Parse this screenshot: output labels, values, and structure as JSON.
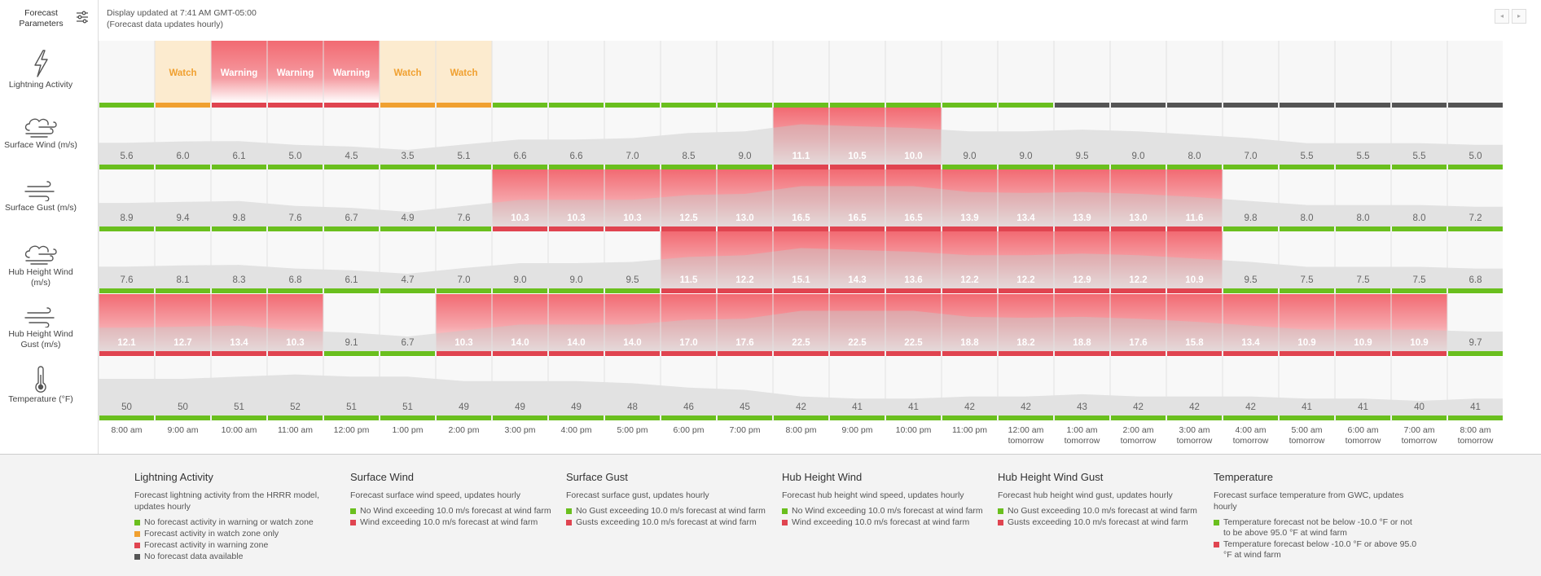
{
  "sidebar": {
    "params_label": "Forecast Parameters",
    "rows": [
      {
        "label": "Lightning Activity",
        "icon": "lightning-icon"
      },
      {
        "label": "Surface Wind (m/s)",
        "icon": "wind-icon"
      },
      {
        "label": "Surface Gust (m/s)",
        "icon": "gust-icon"
      },
      {
        "label": "Hub Height Wind (m/s)",
        "icon": "wind-icon"
      },
      {
        "label": "Hub Height Wind Gust (m/s)",
        "icon": "gust-icon"
      },
      {
        "label": "Temperature (°F)",
        "icon": "thermometer-icon"
      }
    ]
  },
  "header": {
    "updated": "Display updated at 7:41 AM GMT-05:00",
    "note": "(Forecast data updates hourly)",
    "prev_icon": "◂",
    "next_icon": "▸"
  },
  "colors": {
    "green": "#6abf1e",
    "orange": "#f0a030",
    "red": "#e04450",
    "gray": "#555555",
    "watch_bg": "#fcebcf",
    "watch_text": "#f0a030",
    "warning_bg": "#f26a72"
  },
  "lightning": {
    "cells": [
      "",
      "Watch",
      "Warning",
      "Warning",
      "Warning",
      "Watch",
      "Watch",
      "",
      "",
      "",
      "",
      "",
      "",
      "",
      "",
      "",
      "",
      "",
      "",
      "",
      "",
      "",
      "",
      "",
      ""
    ],
    "status": [
      "g",
      "o",
      "r",
      "r",
      "r",
      "o",
      "o",
      "g",
      "g",
      "g",
      "g",
      "g",
      "g",
      "g",
      "g",
      "g",
      "g",
      "x",
      "x",
      "x",
      "x",
      "x",
      "x",
      "x",
      "x"
    ]
  },
  "metrics": [
    {
      "name": "surface-wind",
      "values": [
        "5.6",
        "6.0",
        "6.1",
        "5.0",
        "4.5",
        "3.5",
        "5.1",
        "6.6",
        "6.6",
        "7.0",
        "8.5",
        "9.0",
        "11.1",
        "10.5",
        "10.0",
        "9.0",
        "9.0",
        "9.5",
        "9.0",
        "8.0",
        "7.0",
        "5.5",
        "5.5",
        "5.5",
        "5.0"
      ],
      "exceed": [
        0,
        0,
        0,
        0,
        0,
        0,
        0,
        0,
        0,
        0,
        0,
        0,
        1,
        1,
        1,
        0,
        0,
        0,
        0,
        0,
        0,
        0,
        0,
        0,
        0
      ]
    },
    {
      "name": "surface-gust",
      "values": [
        "8.9",
        "9.4",
        "9.8",
        "7.6",
        "6.7",
        "4.9",
        "7.6",
        "10.3",
        "10.3",
        "10.3",
        "12.5",
        "13.0",
        "16.5",
        "16.5",
        "16.5",
        "13.9",
        "13.4",
        "13.9",
        "13.0",
        "11.6",
        "9.8",
        "8.0",
        "8.0",
        "8.0",
        "7.2"
      ],
      "exceed": [
        0,
        0,
        0,
        0,
        0,
        0,
        0,
        1,
        1,
        1,
        1,
        1,
        1,
        1,
        1,
        1,
        1,
        1,
        1,
        1,
        0,
        0,
        0,
        0,
        0
      ]
    },
    {
      "name": "hub-height-wind",
      "values": [
        "7.6",
        "8.1",
        "8.3",
        "6.8",
        "6.1",
        "4.7",
        "7.0",
        "9.0",
        "9.0",
        "9.5",
        "11.5",
        "12.2",
        "15.1",
        "14.3",
        "13.6",
        "12.2",
        "12.2",
        "12.9",
        "12.2",
        "10.9",
        "9.5",
        "7.5",
        "7.5",
        "7.5",
        "6.8"
      ],
      "exceed": [
        0,
        0,
        0,
        0,
        0,
        0,
        0,
        0,
        0,
        0,
        1,
        1,
        1,
        1,
        1,
        1,
        1,
        1,
        1,
        1,
        0,
        0,
        0,
        0,
        0
      ]
    },
    {
      "name": "hub-height-wind-gust",
      "values": [
        "12.1",
        "12.7",
        "13.4",
        "10.3",
        "9.1",
        "6.7",
        "10.3",
        "14.0",
        "14.0",
        "14.0",
        "17.0",
        "17.6",
        "22.5",
        "22.5",
        "22.5",
        "18.8",
        "18.2",
        "18.8",
        "17.6",
        "15.8",
        "13.4",
        "10.9",
        "10.9",
        "10.9",
        "9.7"
      ],
      "exceed": [
        1,
        1,
        1,
        1,
        0,
        0,
        1,
        1,
        1,
        1,
        1,
        1,
        1,
        1,
        1,
        1,
        1,
        1,
        1,
        1,
        1,
        1,
        1,
        1,
        0
      ]
    },
    {
      "name": "temperature",
      "values": [
        "50",
        "50",
        "51",
        "52",
        "51",
        "51",
        "49",
        "49",
        "49",
        "48",
        "46",
        "45",
        "42",
        "41",
        "41",
        "42",
        "42",
        "43",
        "42",
        "42",
        "42",
        "41",
        "41",
        "40",
        "41"
      ],
      "exceed": [
        0,
        0,
        0,
        0,
        0,
        0,
        0,
        0,
        0,
        0,
        0,
        0,
        0,
        0,
        0,
        0,
        0,
        0,
        0,
        0,
        0,
        0,
        0,
        0,
        0
      ]
    }
  ],
  "times": [
    [
      "8:00 am",
      ""
    ],
    [
      "9:00 am",
      ""
    ],
    [
      "10:00 am",
      ""
    ],
    [
      "11:00 am",
      ""
    ],
    [
      "12:00 pm",
      ""
    ],
    [
      "1:00 pm",
      ""
    ],
    [
      "2:00 pm",
      ""
    ],
    [
      "3:00 pm",
      ""
    ],
    [
      "4:00 pm",
      ""
    ],
    [
      "5:00 pm",
      ""
    ],
    [
      "6:00 pm",
      ""
    ],
    [
      "7:00 pm",
      ""
    ],
    [
      "8:00 pm",
      ""
    ],
    [
      "9:00 pm",
      ""
    ],
    [
      "10:00 pm",
      ""
    ],
    [
      "11:00 pm",
      ""
    ],
    [
      "12:00 am",
      "tomorrow"
    ],
    [
      "1:00 am",
      "tomorrow"
    ],
    [
      "2:00 am",
      "tomorrow"
    ],
    [
      "3:00 am",
      "tomorrow"
    ],
    [
      "4:00 am",
      "tomorrow"
    ],
    [
      "5:00 am",
      "tomorrow"
    ],
    [
      "6:00 am",
      "tomorrow"
    ],
    [
      "7:00 am",
      "tomorrow"
    ],
    [
      "8:00 am",
      "tomorrow"
    ]
  ],
  "legend": [
    {
      "title": "Lightning Activity",
      "desc": "Forecast lightning activity from the HRRR model, updates hourly",
      "items": [
        {
          "color": "#6abf1e",
          "text": "No forecast activity in warning or watch zone"
        },
        {
          "color": "#f0a030",
          "text": "Forecast activity in watch zone only"
        },
        {
          "color": "#e04450",
          "text": "Forecast activity in warning zone"
        },
        {
          "color": "#555555",
          "text": "No forecast data available"
        }
      ]
    },
    {
      "title": "Surface Wind",
      "desc": "Forecast surface wind speed, updates hourly",
      "items": [
        {
          "color": "#6abf1e",
          "text": "No Wind exceeding 10.0 m/s forecast at wind farm"
        },
        {
          "color": "#e04450",
          "text": "Wind exceeding 10.0 m/s forecast at wind farm"
        }
      ]
    },
    {
      "title": "Surface Gust",
      "desc": "Forecast surface gust, updates hourly",
      "items": [
        {
          "color": "#6abf1e",
          "text": "No Gust exceeding 10.0 m/s forecast at wind farm"
        },
        {
          "color": "#e04450",
          "text": "Gusts exceeding 10.0 m/s forecast at wind farm"
        }
      ]
    },
    {
      "title": "Hub Height Wind",
      "desc": "Forecast hub height wind speed, updates hourly",
      "items": [
        {
          "color": "#6abf1e",
          "text": "No Wind exceeding 10.0 m/s forecast at wind farm"
        },
        {
          "color": "#e04450",
          "text": "Wind exceeding 10.0 m/s forecast at wind farm"
        }
      ]
    },
    {
      "title": "Hub Height Wind Gust",
      "desc": "Forecast hub height wind gust, updates hourly",
      "items": [
        {
          "color": "#6abf1e",
          "text": "No Gust exceeding 10.0 m/s forecast at wind farm"
        },
        {
          "color": "#e04450",
          "text": "Gusts exceeding 10.0 m/s forecast at wind farm"
        }
      ]
    },
    {
      "title": "Temperature",
      "desc": "Forecast surface temperature from GWC, updates hourly",
      "items": [
        {
          "color": "#6abf1e",
          "text": "Temperature forecast not be below -10.0 °F or not to be above 95.0 °F at wind farm"
        },
        {
          "color": "#e04450",
          "text": "Temperature forecast below -10.0 °F or above 95.0 °F at wind farm"
        }
      ]
    }
  ]
}
